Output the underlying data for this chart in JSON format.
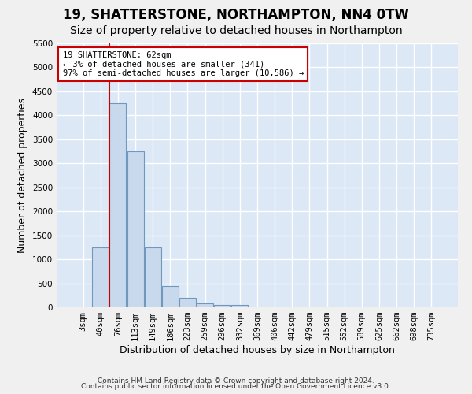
{
  "title": "19, SHATTERSTONE, NORTHAMPTON, NN4 0TW",
  "subtitle": "Size of property relative to detached houses in Northampton",
  "xlabel": "Distribution of detached houses by size in Northampton",
  "ylabel": "Number of detached properties",
  "footnote1": "Contains HM Land Registry data © Crown copyright and database right 2024.",
  "footnote2": "Contains public sector information licensed under the Open Government Licence v3.0.",
  "categories": [
    "3sqm",
    "40sqm",
    "76sqm",
    "113sqm",
    "149sqm",
    "186sqm",
    "223sqm",
    "259sqm",
    "296sqm",
    "332sqm",
    "369sqm",
    "406sqm",
    "442sqm",
    "479sqm",
    "515sqm",
    "552sqm",
    "589sqm",
    "625sqm",
    "662sqm",
    "698sqm",
    "735sqm"
  ],
  "values": [
    0,
    1250,
    4250,
    3250,
    1250,
    450,
    200,
    75,
    50,
    50,
    0,
    0,
    0,
    0,
    0,
    0,
    0,
    0,
    0,
    0,
    0
  ],
  "bar_color": "#c9d9ed",
  "bar_edge_color": "#7098be",
  "ylim": [
    0,
    5500
  ],
  "yticks": [
    0,
    500,
    1000,
    1500,
    2000,
    2500,
    3000,
    3500,
    4000,
    4500,
    5000,
    5500
  ],
  "vline_x": 1.5,
  "vline_color": "#cc0000",
  "annotation_text": "19 SHATTERSTONE: 62sqm\n← 3% of detached houses are smaller (341)\n97% of semi-detached houses are larger (10,586) →",
  "annotation_box_color": "#ffffff",
  "annotation_box_edge": "#cc0000",
  "bg_color": "#dce8f5",
  "grid_color": "#ffffff",
  "title_fontsize": 12,
  "subtitle_fontsize": 10,
  "tick_fontsize": 7.5,
  "ylabel_fontsize": 9,
  "xlabel_fontsize": 9,
  "footnote_fontsize": 6.5,
  "fig_width": 6.0,
  "fig_height": 5.0,
  "fig_dpi": 100
}
